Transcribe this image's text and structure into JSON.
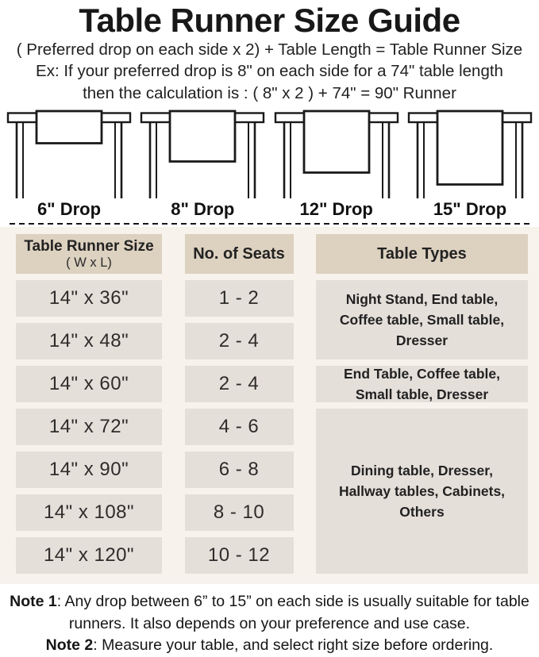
{
  "title": "Table Runner Size Guide",
  "formula": "( Preferred drop on each side x 2) + Table Length = Table Runner Size",
  "example_line1": "Ex: If your preferred drop is 8\" on each side for a 74\" table length",
  "example_line2": "then the calculation is : ( 8\" x 2 ) + 74\" = 90\" Runner",
  "illustrations": [
    {
      "label": "6\" Drop",
      "inches": 6
    },
    {
      "label": "8\" Drop",
      "inches": 8
    },
    {
      "label": "12\" Drop",
      "inches": 12
    },
    {
      "label": "15\" Drop",
      "inches": 15
    }
  ],
  "size_table": {
    "headers": {
      "col1_line1": "Table Runner Size",
      "col1_line2": "( W x L)",
      "col2": "No. of Seats",
      "col3": "Table Types"
    },
    "rows": [
      {
        "size": "14\" x 36\"",
        "seats": "1 - 2"
      },
      {
        "size": "14\" x 48\"",
        "seats": "2 - 4"
      },
      {
        "size": "14\" x 60\"",
        "seats": "2 - 4"
      },
      {
        "size": "14\" x 72\"",
        "seats": "4 - 6"
      },
      {
        "size": "14\" x 90\"",
        "seats": "6 - 8"
      },
      {
        "size": "14\" x 108\"",
        "seats": "8 - 10"
      },
      {
        "size": "14\" x 120\"",
        "seats": "10 - 12"
      }
    ],
    "type_groups": [
      {
        "text": "Night Stand, End table, Coffee table, Small table, Dresser",
        "covers_rows": 2
      },
      {
        "text": "End Table, Coffee table, Small table, Dresser",
        "covers_rows": 1
      },
      {
        "text": "Dining table, Dresser, Hallway tables, Cabinets, Others",
        "covers_rows": 4
      }
    ]
  },
  "notes": [
    {
      "label": "Note 1",
      "text": ": Any drop between 6” to 15” on each side is usually suitable for table runners. It also depends on your preference and use case."
    },
    {
      "label": "Note 2",
      "text": ": Measure your table, and select right size before ordering."
    }
  ],
  "colors": {
    "text": "#1c1c1c",
    "panel_bg": "#f7f2ec",
    "header_cell_bg": "#ddd1c0",
    "data_cell_bg": "#e5dfda",
    "line_color": "#1a1a1a"
  }
}
